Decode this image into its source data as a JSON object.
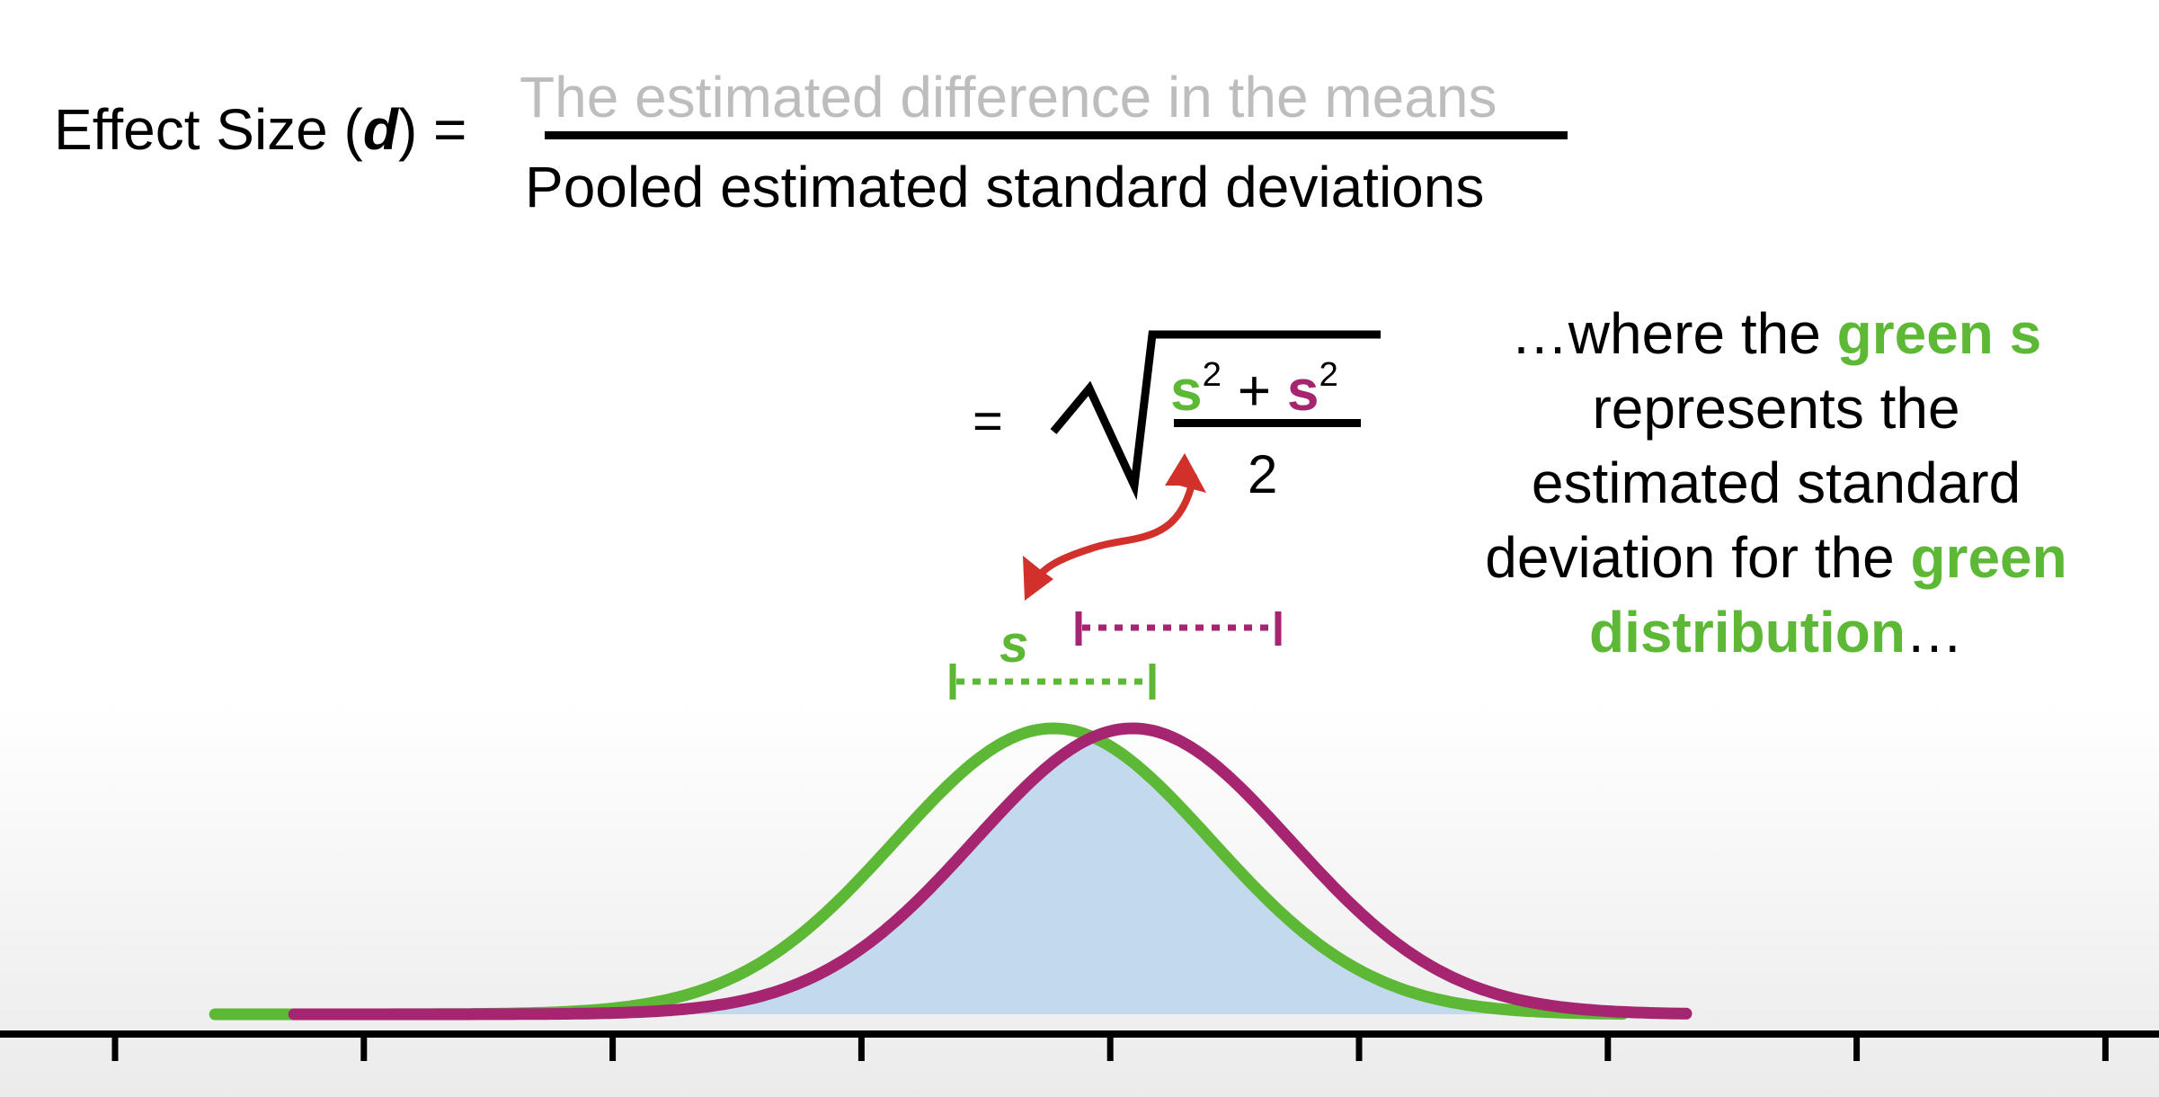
{
  "formula": {
    "lhs": {
      "prefix": "Effect Size (",
      "d": "d",
      "suffix": ") ="
    },
    "numerator": "The estimated difference in the means",
    "denominator": "Pooled estimated standard deviations",
    "equals": "=",
    "radicand": {
      "term1": "s",
      "exp1": "2",
      "plus": " + ",
      "term2": "s",
      "exp2": "2",
      "denominator": "2"
    }
  },
  "note": {
    "line1_a": "…where the ",
    "line1_b": "green s",
    "line2": "represents the",
    "line3": "estimated standard",
    "line4_a": "deviation for the ",
    "line4_b": "green",
    "line5_a": "distribution",
    "line5_b": "…"
  },
  "diagram": {
    "green_sd_label": "s",
    "distributions": [
      {
        "name": "green",
        "mean": 0.0,
        "sd": 1.0,
        "color": "#5db935"
      },
      {
        "name": "magenta",
        "mean": 0.5,
        "sd": 1.0,
        "color": "#a52570"
      }
    ],
    "overlap_fill": "#c3d9ee",
    "arrow_color": "#d2302a",
    "axis_ticks": 9
  }
}
